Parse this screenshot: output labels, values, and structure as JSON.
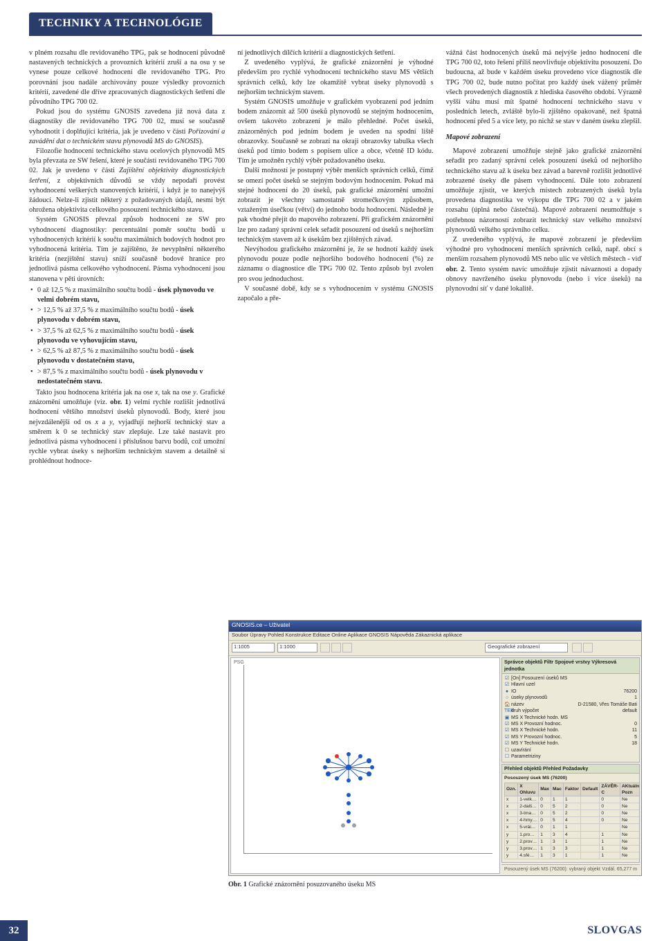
{
  "header": {
    "section_title": "TECHNIKY A TECHNOLÓGIE"
  },
  "footer": {
    "page_number": "32",
    "brand": "SLOVGAS"
  },
  "col1": {
    "p1": "v plném rozsahu dle revidovaného TPG, pak se hodnocení původně nastavených technických a provozních kritérií zruší a na osu y se vynese pouze celkové hodnocení dle revidovaného TPG. Pro porovnání jsou nadále archivovány pouze výsledky provozních kritérií, zavedené dle dříve zpracovaných diagnostických šetření dle původního TPG 700 02.",
    "p2_a": "Pokud jsou do systému GNOSIS zavedena již nová data z diagnostiky dle revidovaného TPG 700 02, musí se současně vyhodnotit i doplňující kritéria, jak je uvedeno v části ",
    "p2_i": "Pořizování a zavádění dat o technickém stavu plynovodů MS do GNOSIS",
    "p2_b": "). ",
    "p3_a": "Filozofie hodnocení technického stavu ocelových plynovodů MS byla převzata ze SW řešení, které je součástí revidovaného TPG 700 02. Jak je uvedeno v části ",
    "p3_i": "Zajištění objektivity diagnostických šetření",
    "p3_b": ", z objektivních důvodů se vždy nepodaří provést vyhodnocení veškerých stanovených kritérií, i když je to nanejvýš žádoucí. Nelze-li zjistit některý z požadovaných údajů, nesmí být ohrožena objektivita celkového posouzení technického stavu.",
    "p4": "Systém GNOSIS převzal způsob hodnocení ze SW pro vyhodnocení diagnostiky: percentuální poměr součtu bodů u vyhodnocených kritérií k součtu maximálních bodových hodnot pro vyhodnocená kritéria. Tím je zajištěno, že nevyplnění některého kritéria (nezjištění stavu) sníží současně bodové hranice pro jednotlivá pásma celkového vyhodnocení. Pásma vyhodnocení jsou stanovena v pěti úrovních:",
    "b1_a": "0 až 12,5 % z maximálního součtu bodů - ",
    "b1_b": "úsek plynovodu ve velmi dobrém stavu,",
    "b2_a": "> 12,5 % až 37,5 % z maximálního součtu bodů - ",
    "b2_b": "úsek plynovodu v dobrém stavu,",
    "b3_a": "> 37,5 % až 62,5 % z maximálního součtu bodů - ",
    "b3_b": "úsek plynovodu ve vyhovujícím stavu,",
    "b4_a": "> 62,5 % až 87,5 % z maximálního součtu bodů - ",
    "b4_b": "úsek plynovodu v dostatečném stavu,",
    "b5_a": "> 87,5 % z maximálního součtu bodů - ",
    "b5_b": "úsek plynovodu v nedostatečném stavu.",
    "p5_a": "Takto jsou hodnocena kritéria jak na ose ",
    "p5_x": "x",
    "p5_m": ", tak na ose ",
    "p5_y": "y",
    "p5_b": ". Grafické znázornění umožňuje (viz. ",
    "p5_ref": "obr. 1",
    "p5_c": ") velmi rychle rozlišit jednotlivá hodnocení většího množství úseků plynovodů. Body, které jsou nejvzdálenější od os ",
    "p5_x2": "x",
    "p5_and": " a ",
    "p5_y2": "y",
    "p5_d": ", vyjadřují nejhorší technický stav a směrem k 0 se technický stav zlepšuje. Lze také nastavit pro jednotlivá pásma vyhodnocení i příslušnou barvu bodů, což umožní rychle vybrat úseky s nejhorším technickým stavem a detailně si prohlédnout hodnoce-"
  },
  "col2": {
    "p1": "ní jednotlivých dílčích kritérií a diagnostických šetření.",
    "p2": "Z uvedeného vyplývá, že grafické znázornění je výhodné především pro rychlé vyhodnocení technického stavu MS větších správních celků, kdy lze okamžitě vybrat úseky plynovodů s nejhorším technickým stavem.",
    "p3": "Systém GNOSIS umožňuje v grafickém vyobrazení pod jedním bodem znázornit až 500 úseků plynovodů se stejným hodnocením, ovšem takovéto zobrazení je málo přehledné. Počet úseků, znázorněných pod jedním bodem je uveden na spodní liště obrazovky. Současně se zobrazí na okraji obrazovky tabulka všech úseků pod tímto bodem s popisem ulice a obce, včetně ID kódu. Tím je umožněn rychlý výběr požadovaného úseku.",
    "p4": "Další možností je postupný výběr menších správních celků, čímž se omezí počet úseků se stejným bodovým hodnocením. Pokud má stejné hodnocení do 20 úseků, pak grafické znázornění umožní zobrazit je všechny samostatně stromečkovým způsobem, vztaženým úsečkou (větví) do jednoho bodu hodnocení. Následně je pak vhodné přejít do mapového zobrazení. Při grafickém znázornění lze pro zadaný správní celek seřadit posouzení od úseků s nejhorším technickým stavem až k úsekům bez zjištěných závad.",
    "p5": "Nevýhodou grafického znázornění je, že se hodnotí každý úsek plynovodu pouze podle nejhoršího bodového hodnocení (%) ze záznamu o diagnostice dle TPG 700 02. Tento způsob byl zvolen pro svou jednoduchost.",
    "p6": "V současné době, kdy se s vyhodnocením v systému GNOSIS započalo a pře-"
  },
  "col3": {
    "p1": "vážná část hodnocených úseků má nejvýše jedno hodnocení dle TPG 700 02, toto řešení příliš neovlivňuje objektivitu posouzení. Do budoucna, až bude v každém úseku provedeno více diagnostik dle TPG 700 02, bude nutno počítat pro každý úsek vážený průměr všech provedených diagnostik z hlediska časového období. Výrazně vyšší váhu musí mít špatné hodnocení technického stavu v posledních letech, zvláště bylo-li zjištěno opakovaně, než špatná hodnocení před 5 a více lety, po nichž se stav v daném úseku zlepšil.",
    "sub": "Mapové zobrazení",
    "p2": "Mapové zobrazení umožňuje stejně jako grafické znázornění seřadit pro zadaný správní celek posouzení úseků od nejhoršího technického stavu až k úseku bez závad a barevně rozlišit jednotlivé zobrazené úseky dle pásem vyhodnocení. Dále toto zobrazení umožňuje zjistit, ve kterých místech zobrazených úseků byla provedena diagnostika ve výkopu dle TPG 700 02 a v jakém rozsahu (úplná nebo částečná). Mapové zobrazení neumožňuje s potřebnou názorností zobrazit technický stav velkého množství plynovodů velkého správního celku.",
    "p3_a": "Z uvedeného vyplývá, že mapové zobrazení je především výhodné pro vyhodnocení menších správních celků, např. obcí s menším rozsahem plynovodů MS nebo ulic ve větších městech - viď ",
    "p3_ref": "obr. 2",
    "p3_b": ". Tento systém navíc umožňuje zjistit návaznosti a dopady obnovy navrženého úseku plynovodu (nebo i více úseků) na plynovodní síť v dané lokalitě."
  },
  "figure": {
    "caption_b": "Obr. 1",
    "caption_t": " Grafické znázornění posuzovaného úseku MS",
    "titlebar": "GNOSIS.ce – Uživatel",
    "menubar": "Soubor  Úpravy  Pohled  Konstrukce  Editace  Online  Aplikace GNOSIS  Nápověda  Zákaznická aplikace",
    "zoom1": "1:1005",
    "zoom2": "1:1000",
    "search_placeholder": "Geografické zobrazení",
    "panel1": {
      "hdr": "Správce objektů  Filtr  Spojové vrstvy  Výkresová jednotka",
      "layers": [
        {
          "icon": "☑",
          "label": "[On] Posouzení úseků MS",
          "value": ""
        },
        {
          "icon": "☑",
          "label": "Hlavní uzel",
          "value": ""
        },
        {
          "icon": "●",
          "label": "IO",
          "value": "76200"
        },
        {
          "icon": "○",
          "label": "úseky plynovodů",
          "value": "1"
        },
        {
          "icon": "🏠",
          "label": "název",
          "value": "D-21580, Vřes Tomáše Bati"
        },
        {
          "icon": "TER",
          "label": "druh výpočet",
          "value": "default"
        },
        {
          "icon": "▣",
          "label": "MS X Technické hodn. MS",
          "value": ""
        },
        {
          "icon": "☑",
          "label": "MS X Provozní hodnoc.",
          "value": "0"
        },
        {
          "icon": "☑",
          "label": "MS X Technické hodn.",
          "value": "11"
        },
        {
          "icon": "☑",
          "label": "MS Y Provozní hodnoc.",
          "value": "5"
        },
        {
          "icon": "☑",
          "label": "MS Y Technické hodn.",
          "value": "18"
        },
        {
          "icon": "☐",
          "label": "uzavírání",
          "value": ""
        },
        {
          "icon": "☐",
          "label": "Parametriziny",
          "value": ""
        }
      ]
    },
    "panel2": {
      "hdr": "Přehled objektů  Přehled  Požadavky",
      "sub": "Posouzený úsek MS (76200)",
      "cols": [
        "Ozn.",
        "X Ohluvu",
        "Max",
        "Mac",
        "Faktor",
        "Default",
        "ZÁVĚR-C",
        "AKtuální   Pozn"
      ],
      "rows": [
        [
          "x",
          "1-velk…",
          "0",
          "1",
          "1",
          "",
          "0",
          "Ne"
        ],
        [
          "x",
          "2-dalš…",
          "0",
          "5",
          "2",
          "",
          "0",
          "Ne"
        ],
        [
          "x",
          "3-tma…",
          "0",
          "5",
          "2",
          "",
          "0",
          "Ne"
        ],
        [
          "x",
          "4-hmy…",
          "0",
          "5",
          "4",
          "",
          "0",
          "Ne"
        ],
        [
          "x",
          "5-vrái…",
          "0",
          "1",
          "1",
          "",
          "",
          "Ne"
        ],
        [
          "y",
          "1.pro…",
          "1",
          "3",
          "4",
          "",
          "1",
          "Ne"
        ],
        [
          "y",
          "2.prov…",
          "1",
          "3",
          "1",
          "",
          "1",
          "Ne"
        ],
        [
          "y",
          "3.prov…",
          "1",
          "3",
          "3",
          "",
          "1",
          "Ne"
        ],
        [
          "y",
          "4.sfé…",
          "1",
          "3",
          "1",
          "",
          "1",
          "Ne"
        ]
      ]
    },
    "status_left": "Posouzený úsek MS (76200): vybraný objekt",
    "status_right": "Vzdál. 65,277 m",
    "axes": {
      "bgcolor": "#ffffff",
      "axis_color": "#9aa0a8",
      "cluster_center": [
        170,
        158
      ],
      "cluster_color": "#1e58c4",
      "sat_colors": [
        "#1e58c4",
        "#1e58c4",
        "#1e58c4",
        "#1e58c4",
        "#1e58c4",
        "#1e58c4",
        "#1e58c4",
        "#1e58c4",
        "#d63b2a",
        "#1e58c4",
        "#1e58c4",
        "#1e58c4"
      ],
      "extra_points": [
        [
          170,
          198,
          "#1e58c4"
        ],
        [
          170,
          210,
          "#1e58c4"
        ],
        [
          170,
          224,
          "#1e58c4"
        ],
        [
          170,
          236,
          "#1e58c4"
        ],
        [
          162,
          242,
          "#9aa0a8"
        ],
        [
          178,
          242,
          "#9aa0a8"
        ]
      ]
    },
    "corner_label": "PSG"
  }
}
